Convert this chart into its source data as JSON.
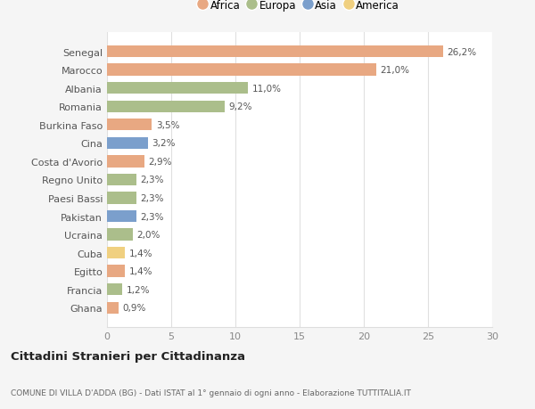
{
  "countries": [
    "Senegal",
    "Marocco",
    "Albania",
    "Romania",
    "Burkina Faso",
    "Cina",
    "Costa d'Avorio",
    "Regno Unito",
    "Paesi Bassi",
    "Pakistan",
    "Ucraina",
    "Cuba",
    "Egitto",
    "Francia",
    "Ghana"
  ],
  "values": [
    26.2,
    21.0,
    11.0,
    9.2,
    3.5,
    3.2,
    2.9,
    2.3,
    2.3,
    2.3,
    2.0,
    1.4,
    1.4,
    1.2,
    0.9
  ],
  "labels": [
    "26,2%",
    "21,0%",
    "11,0%",
    "9,2%",
    "3,5%",
    "3,2%",
    "2,9%",
    "2,3%",
    "2,3%",
    "2,3%",
    "2,0%",
    "1,4%",
    "1,4%",
    "1,2%",
    "0,9%"
  ],
  "continents": [
    "Africa",
    "Africa",
    "Europa",
    "Europa",
    "Africa",
    "Asia",
    "Africa",
    "Europa",
    "Europa",
    "Asia",
    "Europa",
    "America",
    "Africa",
    "Europa",
    "Africa"
  ],
  "colors": {
    "Africa": "#E8A882",
    "Europa": "#ABBE8B",
    "Asia": "#7B9FCC",
    "America": "#F0D080"
  },
  "legend_order": [
    "Africa",
    "Europa",
    "Asia",
    "America"
  ],
  "title": "Cittadini Stranieri per Cittadinanza",
  "subtitle": "COMUNE DI VILLA D'ADDA (BG) - Dati ISTAT al 1° gennaio di ogni anno - Elaborazione TUTTITALIA.IT",
  "xlim": [
    0,
    30
  ],
  "xticks": [
    0,
    5,
    10,
    15,
    20,
    25,
    30
  ],
  "background_color": "#f5f5f5",
  "bar_background": "#ffffff"
}
